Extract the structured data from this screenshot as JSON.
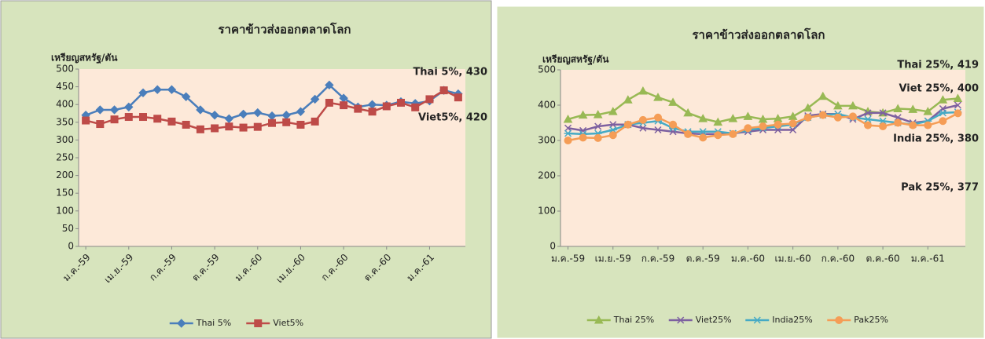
{
  "chart_data": [
    {
      "type": "line",
      "title": "ราคาข้าวส่งออกตลาดโลก",
      "y_label": "เหรียญสหรัฐ/ตัน",
      "categories": [
        "ม.ค.-59",
        null,
        null,
        "เม.ย.-59",
        null,
        null,
        "ก.ค.-59",
        null,
        null,
        "ต.ค.-59",
        null,
        null,
        "ม.ค.-60",
        null,
        null,
        "เม.ย.-60",
        null,
        null,
        "ก.ค.-60",
        null,
        null,
        "ต.ค.-60",
        null,
        null,
        "ม.ค.-61",
        null,
        null
      ],
      "series": [
        {
          "name": "Thai 5%",
          "color": "#4a7ebb",
          "marker": "diamond",
          "values": [
            370,
            385,
            385,
            393,
            433,
            442,
            442,
            422,
            385,
            370,
            360,
            373,
            377,
            368,
            370,
            380,
            415,
            455,
            418,
            393,
            400,
            398,
            408,
            403,
            410,
            440,
            430
          ],
          "value_labels": [
            null,
            null,
            null,
            null,
            null,
            null,
            null,
            null,
            null,
            null,
            null,
            null,
            null,
            null,
            null,
            null,
            null,
            null,
            null,
            null,
            null,
            null,
            null,
            null,
            null,
            null,
            "Thai 5%, 430"
          ]
        },
        {
          "name": "Viet5%",
          "color": "#be4b48",
          "marker": "square",
          "values": [
            355,
            345,
            358,
            365,
            365,
            360,
            352,
            343,
            330,
            333,
            338,
            335,
            337,
            348,
            350,
            343,
            352,
            405,
            398,
            388,
            380,
            395,
            405,
            392,
            415,
            440,
            420
          ],
          "value_labels": [
            null,
            null,
            null,
            null,
            null,
            null,
            null,
            null,
            null,
            null,
            null,
            null,
            null,
            null,
            null,
            null,
            null,
            null,
            null,
            null,
            null,
            null,
            null,
            null,
            null,
            null,
            "Viet5%, 420"
          ]
        }
      ],
      "ylim": [
        0,
        500
      ],
      "yticks": [
        0,
        50,
        100,
        150,
        200,
        250,
        300,
        350,
        400,
        450,
        500
      ],
      "grid": false,
      "legend": "bottom"
    },
    {
      "type": "line",
      "title": "ราคาข้าวส่งออกตลาดโลก",
      "y_label": "เหรียญสหรัฐ/ตัน",
      "categories": [
        "ม.ค.-59",
        null,
        null,
        "เม.ย.-59",
        null,
        null,
        "ก.ค.-59",
        null,
        null,
        "ต.ค.-59",
        null,
        null,
        "ม.ค.-60",
        null,
        null,
        "เม.ย.-60",
        null,
        null,
        "ก.ค.-60",
        null,
        null,
        "ต.ค.-60",
        null,
        null,
        "ม.ค.-61",
        null,
        null
      ],
      "series": [
        {
          "name": "Thai 25%",
          "color": "#98b954",
          "marker": "triangle",
          "values": [
            360,
            372,
            373,
            382,
            415,
            440,
            422,
            408,
            378,
            362,
            352,
            362,
            368,
            360,
            362,
            368,
            392,
            425,
            398,
            398,
            382,
            378,
            390,
            388,
            382,
            415,
            419
          ],
          "value_labels": [
            null,
            null,
            null,
            null,
            null,
            null,
            null,
            null,
            null,
            null,
            null,
            null,
            null,
            null,
            null,
            null,
            null,
            null,
            null,
            null,
            null,
            null,
            null,
            null,
            null,
            null,
            "Thai 25%, 419"
          ]
        },
        {
          "name": "Viet25%",
          "color": "#7d60a0",
          "marker": "x",
          "values": [
            335,
            328,
            340,
            345,
            345,
            335,
            330,
            325,
            320,
            318,
            318,
            320,
            325,
            330,
            330,
            330,
            370,
            375,
            375,
            360,
            378,
            378,
            365,
            350,
            355,
            390,
            400
          ],
          "value_labels": [
            null,
            null,
            null,
            null,
            null,
            null,
            null,
            null,
            null,
            null,
            null,
            null,
            null,
            null,
            null,
            null,
            null,
            null,
            null,
            null,
            null,
            null,
            null,
            null,
            null,
            null,
            "Viet 25%, 400"
          ]
        },
        {
          "name": "India25%",
          "color": "#46aac5",
          "marker": "star",
          "values": [
            320,
            318,
            320,
            330,
            345,
            350,
            355,
            335,
            325,
            325,
            325,
            320,
            330,
            335,
            340,
            345,
            365,
            372,
            375,
            365,
            360,
            355,
            350,
            345,
            355,
            378,
            380
          ],
          "value_labels": [
            null,
            null,
            null,
            null,
            null,
            null,
            null,
            null,
            null,
            null,
            null,
            null,
            null,
            null,
            null,
            null,
            null,
            null,
            null,
            null,
            null,
            null,
            null,
            null,
            null,
            null,
            "India 25%, 380"
          ]
        },
        {
          "name": "Pak25%",
          "color": "#f59d56",
          "marker": "circle",
          "values": [
            300,
            308,
            307,
            315,
            345,
            358,
            365,
            345,
            318,
            308,
            315,
            318,
            335,
            340,
            345,
            348,
            365,
            372,
            365,
            368,
            343,
            340,
            350,
            343,
            343,
            355,
            377
          ],
          "value_labels": [
            null,
            null,
            null,
            null,
            null,
            null,
            null,
            null,
            null,
            null,
            null,
            null,
            null,
            null,
            null,
            null,
            null,
            null,
            null,
            null,
            null,
            null,
            null,
            null,
            null,
            null,
            "Pak 25%, 377"
          ]
        }
      ],
      "ylim": [
        0,
        500
      ],
      "yticks": [
        0,
        100,
        200,
        300,
        400,
        500
      ],
      "grid": false,
      "legend": "bottom"
    }
  ]
}
